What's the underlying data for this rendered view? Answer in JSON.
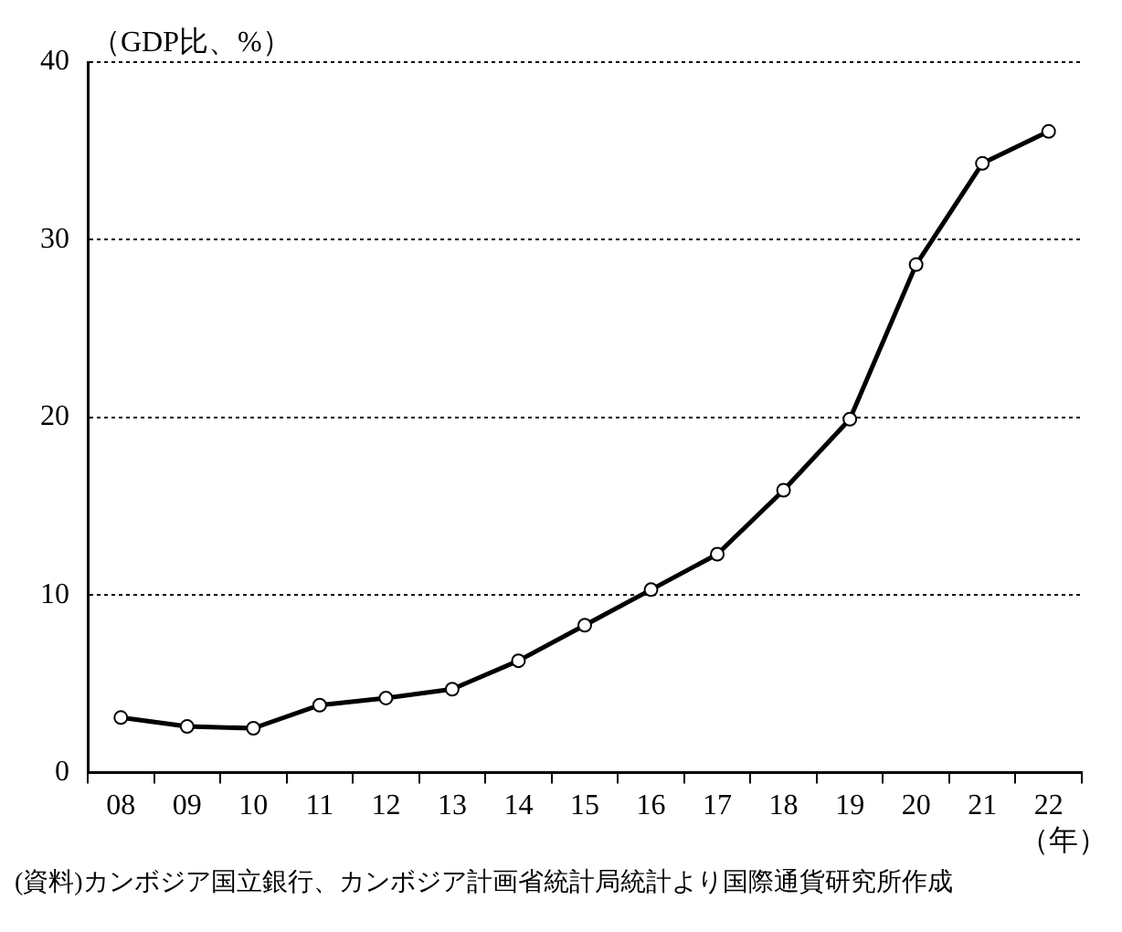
{
  "chart_data": {
    "type": "line",
    "ylabel": "（GDP比、%）",
    "xlabel": "（年）",
    "categories": [
      "08",
      "09",
      "10",
      "11",
      "12",
      "13",
      "14",
      "15",
      "16",
      "17",
      "18",
      "19",
      "20",
      "21",
      "22"
    ],
    "series": [
      {
        "color": "#000000",
        "values": [
          3.1,
          2.6,
          2.5,
          3.8,
          4.2,
          4.7,
          6.3,
          8.3,
          10.3,
          12.3,
          15.9,
          19.9,
          28.6,
          34.3,
          36.1
        ]
      }
    ],
    "ylim": [
      0,
      40
    ],
    "yticks": [
      0,
      10,
      20,
      30,
      40
    ],
    "grid": "y",
    "legend": false,
    "marker": "circle",
    "line_style": "solid",
    "annotations": [
      "(資料)カンボジア国立銀行、カンボジア計画省統計局統計より国際通貨研究所作成"
    ]
  }
}
